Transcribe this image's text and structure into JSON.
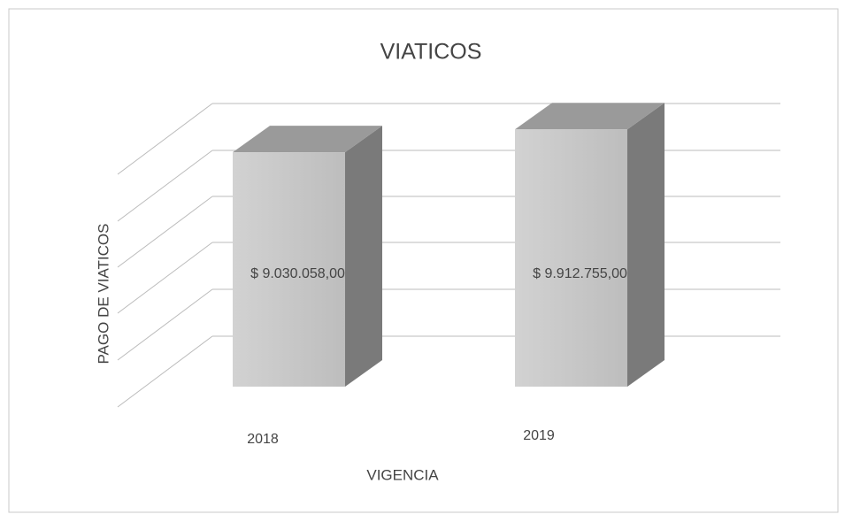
{
  "chart_data": {
    "type": "bar3d",
    "title": "VIATICOS",
    "x_label": "VIGENCIA",
    "y_label": "PAGO DE VIATICOS",
    "categories": [
      "2018",
      "2019"
    ],
    "values": [
      9030058,
      9912755
    ],
    "value_labels": [
      "$ 9.030.058,00",
      "$ 9.912.755,00"
    ],
    "ylim": [
      0,
      12000000
    ],
    "color": "#c4c4c4"
  }
}
